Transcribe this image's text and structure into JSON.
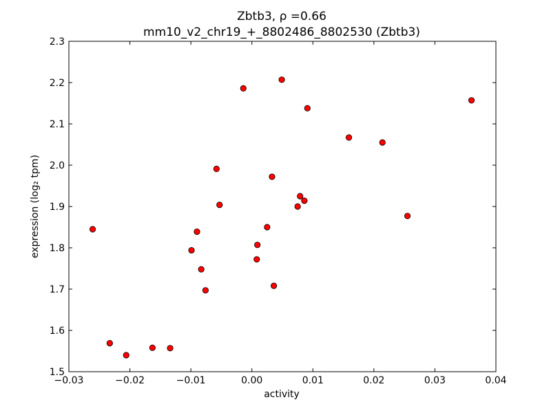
{
  "chart_data": {
    "type": "scatter",
    "title_line1": "Zbtb3, ρ =0.66",
    "title_line2": "mm10_v2_chr19_+_8802486_8802530 (Zbtb3)",
    "xlabel": "activity",
    "ylabel": "expression (log₂ tpm)",
    "xlim": [
      -0.03,
      0.04
    ],
    "ylim": [
      1.5,
      2.3
    ],
    "xticks": [
      -0.03,
      -0.02,
      -0.01,
      0.0,
      0.01,
      0.02,
      0.03,
      0.04
    ],
    "xtick_labels": [
      "−0.03",
      "−0.02",
      "−0.01",
      "0.00",
      "0.01",
      "0.02",
      "0.03",
      "0.04"
    ],
    "yticks": [
      1.5,
      1.6,
      1.7,
      1.8,
      1.9,
      2.0,
      2.1,
      2.2,
      2.3
    ],
    "ytick_labels": [
      "1.5",
      "1.6",
      "1.7",
      "1.8",
      "1.9",
      "2.0",
      "2.1",
      "2.2",
      "2.3"
    ],
    "grid": false,
    "marker_color": "#ff0000",
    "marker_edge": "#000000",
    "points": [
      {
        "x": -0.0261,
        "y": 1.845
      },
      {
        "x": -0.0233,
        "y": 1.569
      },
      {
        "x": -0.0206,
        "y": 1.54
      },
      {
        "x": -0.0163,
        "y": 1.558
      },
      {
        "x": -0.0134,
        "y": 1.557
      },
      {
        "x": -0.0099,
        "y": 1.794
      },
      {
        "x": -0.009,
        "y": 1.839
      },
      {
        "x": -0.0083,
        "y": 1.748
      },
      {
        "x": -0.0076,
        "y": 1.697
      },
      {
        "x": -0.0058,
        "y": 1.991
      },
      {
        "x": -0.0053,
        "y": 1.904
      },
      {
        "x": -0.0014,
        "y": 2.186
      },
      {
        "x": 0.0008,
        "y": 1.772
      },
      {
        "x": 0.0009,
        "y": 1.807
      },
      {
        "x": 0.0025,
        "y": 1.85
      },
      {
        "x": 0.0033,
        "y": 1.972
      },
      {
        "x": 0.0036,
        "y": 1.708
      },
      {
        "x": 0.0049,
        "y": 2.207
      },
      {
        "x": 0.0075,
        "y": 1.9
      },
      {
        "x": 0.0079,
        "y": 1.925
      },
      {
        "x": 0.0086,
        "y": 1.914
      },
      {
        "x": 0.0091,
        "y": 2.138
      },
      {
        "x": 0.0159,
        "y": 2.067
      },
      {
        "x": 0.0214,
        "y": 2.055
      },
      {
        "x": 0.0255,
        "y": 1.877
      },
      {
        "x": 0.036,
        "y": 2.157
      }
    ]
  }
}
